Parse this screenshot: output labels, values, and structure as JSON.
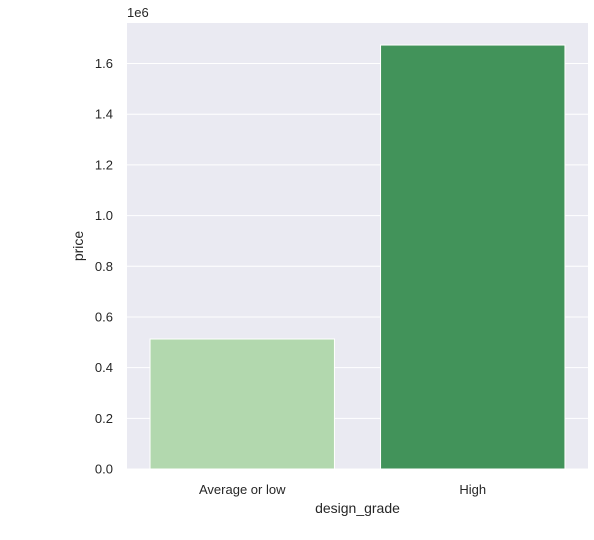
{
  "chart_data": {
    "type": "bar",
    "categories": [
      "Average or low",
      "High"
    ],
    "values": [
      513000,
      1673000
    ],
    "xlabel": "design_grade",
    "ylabel": "price",
    "ylim": [
      0,
      1760000
    ],
    "y_scale_label": "1e6",
    "yticks": [
      0.0,
      0.2,
      0.4,
      0.6,
      0.8,
      1.0,
      1.2,
      1.4,
      1.6
    ],
    "ytick_labels": [
      "0.0",
      "0.2",
      "0.4",
      "0.6",
      "0.8",
      "1.0",
      "1.2",
      "1.4",
      "1.6"
    ],
    "grid": true,
    "colors": {
      "plot_background": "#eaeaf2",
      "grid": "#ffffff",
      "bars": [
        "#b2d8ae",
        "#42935a"
      ]
    }
  }
}
